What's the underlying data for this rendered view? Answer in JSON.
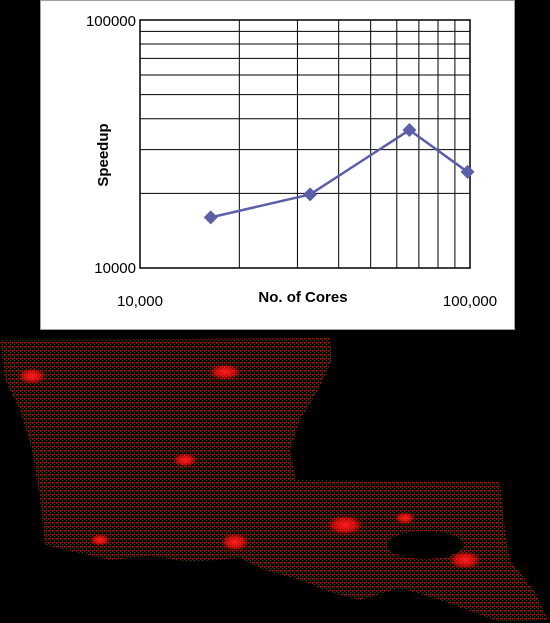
{
  "chart_data": {
    "type": "line",
    "title": "",
    "xlabel": "No. of Cores",
    "ylabel": "Speedup",
    "x_scale": "log",
    "y_scale": "log",
    "xlim": [
      10000,
      100000
    ],
    "ylim": [
      10000,
      100000
    ],
    "x_tick_labels": [
      "10,000",
      "100,000"
    ],
    "y_tick_labels": [
      "10000",
      "100000"
    ],
    "grid": true,
    "legend": "none",
    "series": [
      {
        "x": [
          16384,
          32768,
          65536,
          98304
        ],
        "values": [
          16000,
          19800,
          36000,
          24400
        ],
        "color": "#5a5fa8",
        "marker": "diamond"
      }
    ]
  },
  "colors": {
    "background": "#000000",
    "panel": "#ffffff",
    "series_line": "#5a5fa8",
    "map_density_red": "#ff1a1a",
    "map_density_green": "#2a5a1a"
  }
}
